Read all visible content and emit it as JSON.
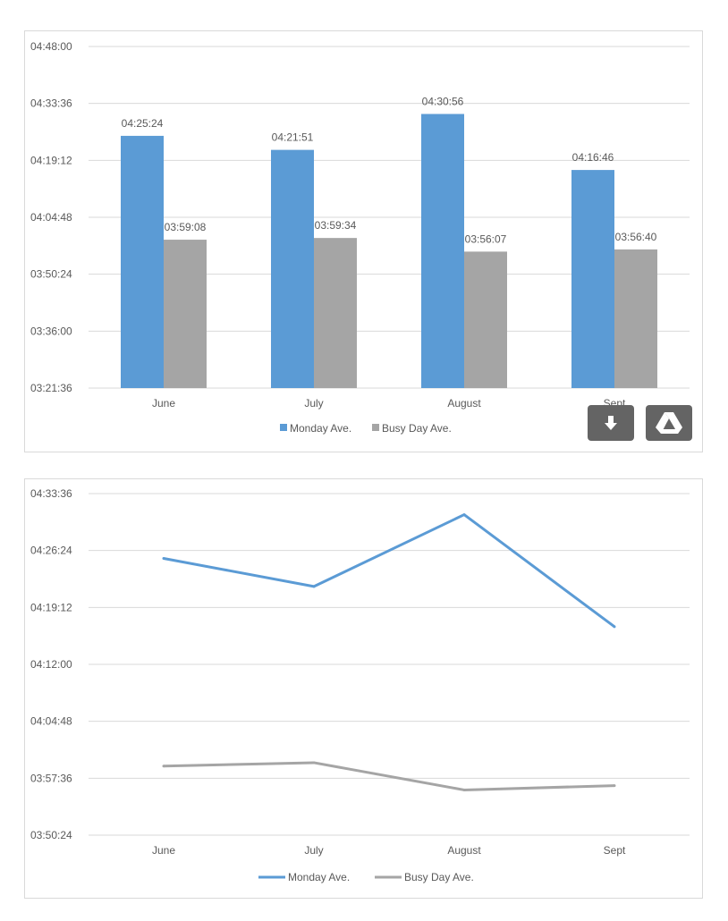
{
  "chart_data": [
    {
      "type": "bar",
      "categories": [
        "June",
        "July",
        "August",
        "Sept"
      ],
      "series": [
        {
          "name": "Monday Ave.",
          "color": "#5b9bd5",
          "values": [
            "04:25:24",
            "04:21:51",
            "04:30:56",
            "04:16:46"
          ],
          "labels": [
            "04:25:24",
            "04:21:51",
            "04:30:56",
            "04:16:46"
          ]
        },
        {
          "name": "Busy Day Ave.",
          "color": "#a5a5a5",
          "values": [
            "03:59:08",
            "03:59:34",
            "03:56:07",
            "03:56:40"
          ],
          "labels": [
            "03:59:08",
            "03:59:34",
            "03:56:07",
            "03:56:40"
          ]
        }
      ],
      "ylim": [
        "03:21:36",
        "04:48:00"
      ],
      "yticks": [
        "04:48:00",
        "04:33:36",
        "04:19:12",
        "04:04:48",
        "03:50:24",
        "03:36:00",
        "03:21:36"
      ],
      "grid": true,
      "legend": "bottom"
    },
    {
      "type": "line",
      "categories": [
        "June",
        "July",
        "August",
        "Sept"
      ],
      "series": [
        {
          "name": "Monday Ave.",
          "color": "#5b9bd5",
          "values": [
            "04:25:24",
            "04:21:51",
            "04:30:56",
            "04:16:46"
          ]
        },
        {
          "name": "Busy Day Ave.",
          "color": "#a5a5a5",
          "values": [
            "03:59:08",
            "03:59:34",
            "03:56:07",
            "03:56:40"
          ]
        }
      ],
      "ylim": [
        "03:50:24",
        "04:33:36"
      ],
      "yticks": [
        "04:33:36",
        "04:26:24",
        "04:19:12",
        "04:12:00",
        "04:04:48",
        "03:57:36",
        "03:50:24"
      ],
      "grid": true,
      "legend": "bottom"
    }
  ],
  "controls": {
    "download_icon": "download-arrow-icon",
    "drive_icon": "google-drive-icon"
  }
}
